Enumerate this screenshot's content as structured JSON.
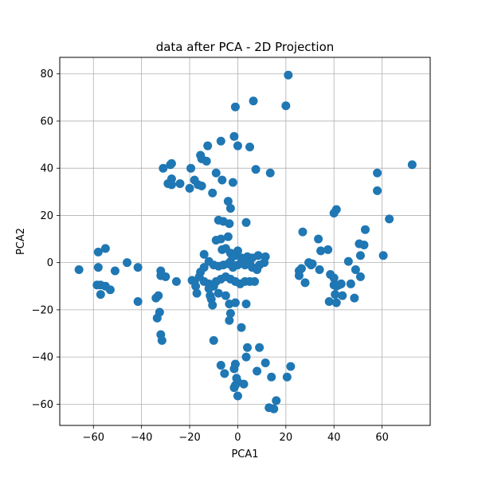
{
  "chart_data": {
    "type": "scatter",
    "title": "data after PCA - 2D Projection",
    "xlabel": "PCA1",
    "ylabel": "PCA2",
    "xlim": [
      -74,
      80
    ],
    "ylim": [
      -69,
      87
    ],
    "xticks": [
      -60,
      -40,
      -20,
      0,
      20,
      40,
      60
    ],
    "yticks": [
      -60,
      -40,
      -20,
      0,
      20,
      40,
      60,
      80
    ],
    "xtick_labels": [
      "−60",
      "−40",
      "−20",
      "0",
      "20",
      "40",
      "60"
    ],
    "ytick_labels": [
      "−60",
      "−40",
      "−20",
      "0",
      "20",
      "40",
      "60",
      "80"
    ],
    "grid": true,
    "marker_color": "#1f77b4",
    "points": [
      [
        21,
        79.5
      ],
      [
        6.5,
        68.5
      ],
      [
        -1,
        66
      ],
      [
        20,
        66.5
      ],
      [
        -1.5,
        53.5
      ],
      [
        -7,
        51.5
      ],
      [
        0,
        49.5
      ],
      [
        5,
        49
      ],
      [
        -12.5,
        49.5
      ],
      [
        -15.5,
        45.5
      ],
      [
        -15,
        44
      ],
      [
        -13,
        43
      ],
      [
        -27.5,
        42
      ],
      [
        -28,
        41.5
      ],
      [
        -31,
        40
      ],
      [
        -19.5,
        40
      ],
      [
        7.5,
        39.5
      ],
      [
        13.5,
        38
      ],
      [
        -9,
        38
      ],
      [
        -27.5,
        35.5
      ],
      [
        -18,
        35
      ],
      [
        -6.5,
        35
      ],
      [
        -2,
        34
      ],
      [
        -24,
        33.5
      ],
      [
        -29,
        33.5
      ],
      [
        -27.5,
        33
      ],
      [
        -16.5,
        33
      ],
      [
        -15,
        32.5
      ],
      [
        -20,
        31.5
      ],
      [
        -10.5,
        29.5
      ],
      [
        -4,
        26
      ],
      [
        -3,
        23
      ],
      [
        -8,
        18
      ],
      [
        -6,
        17.5
      ],
      [
        -3.5,
        16.5
      ],
      [
        3.5,
        17
      ],
      [
        -55,
        6
      ],
      [
        -58,
        4.5
      ],
      [
        -14,
        3.5
      ],
      [
        -6.5,
        5.5
      ],
      [
        -5,
        6
      ],
      [
        -3,
        4
      ],
      [
        -1,
        3
      ],
      [
        0,
        5
      ],
      [
        1.5,
        2
      ],
      [
        4,
        2.5
      ],
      [
        6,
        2
      ],
      [
        8.5,
        3
      ],
      [
        11.5,
        2.5
      ],
      [
        -4,
        11
      ],
      [
        -7,
        10
      ],
      [
        -9,
        9.5
      ],
      [
        -66,
        -3
      ],
      [
        -58,
        -2
      ],
      [
        -46,
        0
      ],
      [
        -41.5,
        -2
      ],
      [
        -51,
        -3.5
      ],
      [
        -32,
        -3.5
      ],
      [
        -32,
        -5.5
      ],
      [
        -30,
        -6
      ],
      [
        -25.5,
        -8
      ],
      [
        -19,
        -7.5
      ],
      [
        -18,
        -8
      ],
      [
        -12,
        0.5
      ],
      [
        -10,
        -1
      ],
      [
        -8,
        -1.5
      ],
      [
        -6,
        -1
      ],
      [
        -4,
        -0.5
      ],
      [
        -3,
        0.5
      ],
      [
        -2,
        -2
      ],
      [
        0,
        -1
      ],
      [
        2,
        0
      ],
      [
        3,
        -1
      ],
      [
        5,
        -0.5
      ],
      [
        6,
        -2
      ],
      [
        8,
        -3
      ],
      [
        9,
        -1
      ],
      [
        11,
        0
      ],
      [
        -14,
        -2
      ],
      [
        -15.5,
        -4
      ],
      [
        -16,
        -6
      ],
      [
        -14,
        -8
      ],
      [
        -12,
        -9
      ],
      [
        -10,
        -10
      ],
      [
        -9,
        -8
      ],
      [
        -7,
        -7
      ],
      [
        -5,
        -6
      ],
      [
        -3,
        -7
      ],
      [
        -1,
        -8
      ],
      [
        1,
        -9
      ],
      [
        3,
        -8
      ],
      [
        5,
        -8
      ],
      [
        7,
        -8
      ],
      [
        -58.5,
        -9.5
      ],
      [
        -57,
        -9.5
      ],
      [
        -57,
        -13.5
      ],
      [
        -55,
        -10
      ],
      [
        -53,
        -11.5
      ],
      [
        -41.5,
        -16.5
      ],
      [
        -17.5,
        -10
      ],
      [
        -17,
        -13
      ],
      [
        -12,
        -11
      ],
      [
        -11.5,
        -14
      ],
      [
        -11,
        -15.5
      ],
      [
        -10.5,
        -18
      ],
      [
        -8,
        -13
      ],
      [
        -5,
        -14
      ],
      [
        -3.5,
        -17.5
      ],
      [
        -1,
        -17
      ],
      [
        3.5,
        -17.5
      ],
      [
        -3,
        -21.5
      ],
      [
        -3.5,
        -24.5
      ],
      [
        -34,
        -15
      ],
      [
        -33,
        -14
      ],
      [
        -33.5,
        -23.5
      ],
      [
        -32.5,
        -21
      ],
      [
        -32,
        -30.5
      ],
      [
        -31.5,
        -33
      ],
      [
        1.5,
        -27.5
      ],
      [
        -10,
        -33
      ],
      [
        4,
        -36
      ],
      [
        9,
        -36
      ],
      [
        3.5,
        -40
      ],
      [
        -7,
        -43.5
      ],
      [
        -1,
        -43
      ],
      [
        -1.5,
        -45
      ],
      [
        8,
        -46
      ],
      [
        -5.5,
        -47
      ],
      [
        11.5,
        -42.5
      ],
      [
        14,
        -48.5
      ],
      [
        20.5,
        -48.5
      ],
      [
        22,
        -44
      ],
      [
        -0.5,
        -49
      ],
      [
        0,
        -50.5
      ],
      [
        -1,
        -52
      ],
      [
        -1.5,
        -53
      ],
      [
        2.5,
        -51.5
      ],
      [
        0,
        -56.5
      ],
      [
        16,
        -58.5
      ],
      [
        13,
        -61.5
      ],
      [
        15,
        -62
      ],
      [
        27,
        13
      ],
      [
        33.5,
        10
      ],
      [
        34.5,
        5
      ],
      [
        37.5,
        5.5
      ],
      [
        50.5,
        8
      ],
      [
        52.5,
        7.5
      ],
      [
        53,
        14
      ],
      [
        51,
        3
      ],
      [
        46,
        0.5
      ],
      [
        25.5,
        -3.5
      ],
      [
        26.5,
        -2.5
      ],
      [
        25.5,
        -5.5
      ],
      [
        28,
        -8.5
      ],
      [
        29.5,
        0
      ],
      [
        30.5,
        -1
      ],
      [
        31,
        -0.5
      ],
      [
        34,
        -3
      ],
      [
        38,
        -16.5
      ],
      [
        38.5,
        -5
      ],
      [
        40,
        -6.5
      ],
      [
        40,
        -9.5
      ],
      [
        41,
        -10
      ],
      [
        43,
        -9
      ],
      [
        42,
        -9.5
      ],
      [
        40.5,
        -13.5
      ],
      [
        41,
        -17
      ],
      [
        43.5,
        -14
      ],
      [
        47,
        -9
      ],
      [
        49,
        -3
      ],
      [
        51,
        -6
      ],
      [
        48.5,
        -15
      ],
      [
        40,
        21
      ],
      [
        41,
        22.5
      ],
      [
        58,
        38
      ],
      [
        58,
        30.5
      ],
      [
        63,
        18.5
      ],
      [
        72.5,
        41.5
      ],
      [
        60.5,
        3
      ]
    ]
  }
}
